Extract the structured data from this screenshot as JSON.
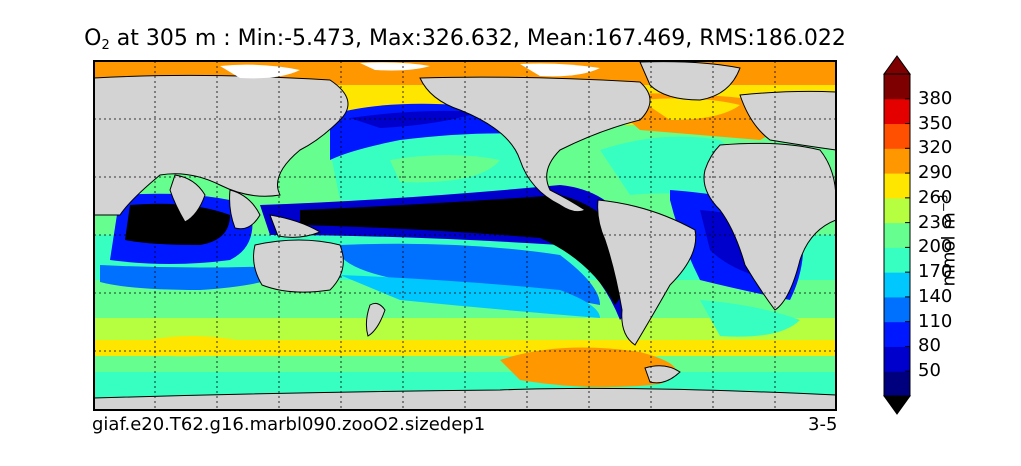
{
  "title": {
    "variable_main": "O",
    "variable_sub": "2",
    "rest": " at 305 m : Min:-5.473, Max:326.632, Mean:167.469, RMS:186.022"
  },
  "colorbar": {
    "unit_main": "mmol m",
    "unit_sup": "−3",
    "ticks": [
      "50",
      "80",
      "110",
      "140",
      "170",
      "200",
      "230",
      "260",
      "290",
      "320",
      "350",
      "380"
    ],
    "colors": [
      "#00007f",
      "#0000cd",
      "#0018ff",
      "#0070ff",
      "#00c8ff",
      "#36ffc1",
      "#66ff8f",
      "#b6ff40",
      "#ffe600",
      "#ff9800",
      "#ff4f00",
      "#e50000",
      "#7f0000"
    ],
    "land_color": "#d3d3d3",
    "low_color": "#000000"
  },
  "footer": {
    "case_name": "giaf.e20.T62.g16.marbl090.zooO2.sizedep1",
    "years": "3-5"
  }
}
